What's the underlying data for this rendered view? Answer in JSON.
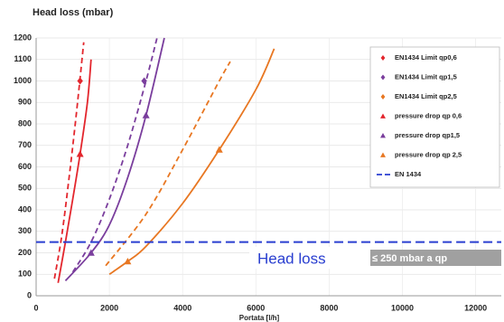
{
  "chart_data": {
    "type": "line",
    "title": "Head loss (mbar)",
    "x_label": "Portata [l/h]",
    "xlim": [
      0,
      12700
    ],
    "ylim": [
      0,
      1200
    ],
    "xticks": [
      0,
      2000,
      4000,
      6000,
      8000,
      10000,
      12000
    ],
    "yticks": [
      0,
      100,
      200,
      300,
      400,
      500,
      600,
      700,
      800,
      900,
      1000,
      1100,
      1200
    ],
    "grid": true,
    "legend": "upper right",
    "series": [
      {
        "name": "EN1434 Limit qp0,6",
        "color": "#e3262d",
        "dash": true,
        "marker": "diamond",
        "x": [
          500,
          700,
          900,
          1100,
          1300
        ],
        "values": [
          80,
          280,
          550,
          850,
          1180
        ],
        "markers": {
          "x": [
            1200
          ],
          "values": [
            1000
          ]
        }
      },
      {
        "name": "EN1434 Limit qp1,5",
        "color": "#7a3e9d",
        "dash": true,
        "marker": "diamond",
        "x": [
          1000,
          1500,
          2000,
          2500,
          3000,
          3300
        ],
        "values": [
          110,
          250,
          450,
          700,
          1000,
          1200
        ],
        "markers": {
          "x": [
            2950
          ],
          "values": [
            1000
          ]
        }
      },
      {
        "name": "EN1434 Limit qp2,5",
        "color": "#e87722",
        "dash": true,
        "marker": "diamond",
        "x": [
          1900,
          3000,
          4000,
          5000,
          5300
        ],
        "values": [
          140,
          380,
          680,
          1000,
          1090
        ],
        "markers": {
          "x": [],
          "values": []
        }
      },
      {
        "name": "pressure drop qp 0,6",
        "color": "#e3262d",
        "dash": false,
        "marker": "triangle",
        "x": [
          600,
          800,
          1000,
          1200,
          1400,
          1500
        ],
        "values": [
          60,
          250,
          450,
          660,
          900,
          1100
        ],
        "markers": {
          "x": [
            1200
          ],
          "values": [
            660
          ]
        }
      },
      {
        "name": "pressure drop qp1,5",
        "color": "#7a3e9d",
        "dash": false,
        "marker": "triangle",
        "x": [
          800,
          1500,
          2000,
          2500,
          3000,
          3500
        ],
        "values": [
          70,
          200,
          330,
          550,
          840,
          1200
        ],
        "markers": {
          "x": [
            1500,
            3000
          ],
          "values": [
            200,
            840
          ]
        }
      },
      {
        "name": "pressure drop qp 2,5",
        "color": "#e87722",
        "dash": false,
        "marker": "triangle",
        "x": [
          2000,
          2500,
          3000,
          4000,
          5000,
          6000,
          6500
        ],
        "values": [
          100,
          160,
          230,
          430,
          680,
          960,
          1150
        ],
        "markers": {
          "x": [
            2500,
            5000
          ],
          "values": [
            160,
            680
          ]
        }
      },
      {
        "name": "EN 1434",
        "color": "#2a3fd0",
        "dash": "long",
        "marker": null,
        "x": [
          0,
          12700
        ],
        "values": [
          250,
          250
        ],
        "markers": {
          "x": [],
          "values": []
        }
      }
    ],
    "annotations": [
      "Head loss",
      "≤ 250 mbar a qp"
    ]
  }
}
